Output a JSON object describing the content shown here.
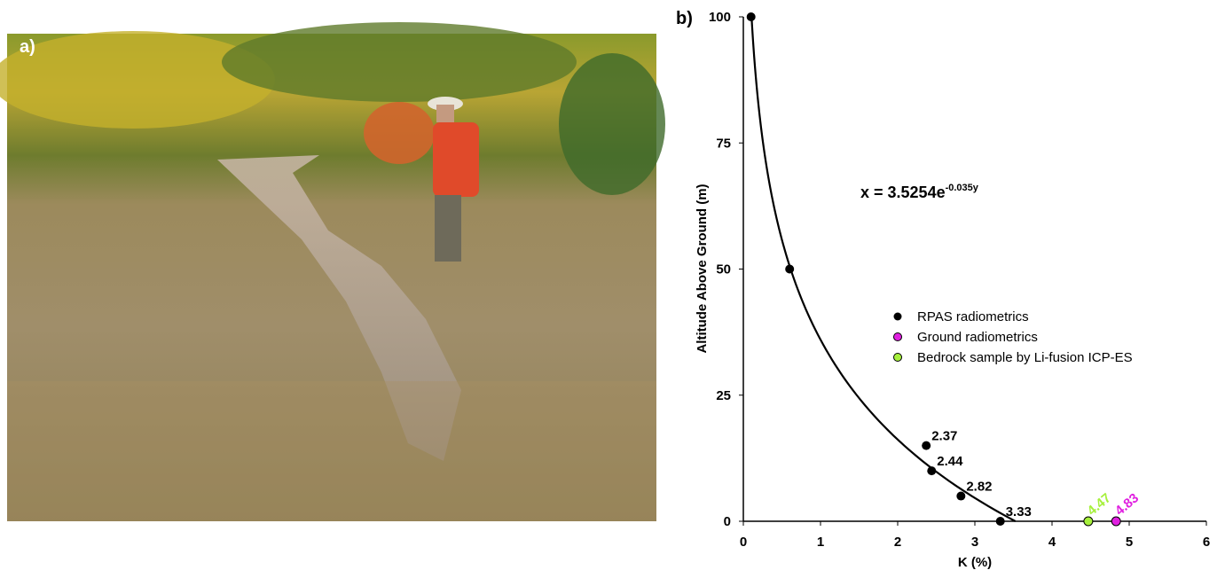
{
  "photo": {
    "label": "a)"
  },
  "chart_data": {
    "type": "scatter",
    "panel_label": "b)",
    "x_label": "K (%)",
    "y_label": "Altitude Above Ground (m)",
    "equation": {
      "text": "x = 3.5254e",
      "exponent": "-0.035y"
    },
    "fit": {
      "a": 3.5254,
      "k": -0.035
    },
    "xlim": [
      0,
      6
    ],
    "xticks": [
      0,
      1,
      2,
      3,
      4,
      5,
      6
    ],
    "ylim": [
      0,
      100
    ],
    "yticks": [
      0,
      25,
      50,
      75,
      100
    ],
    "series": [
      {
        "name": "RPAS radiometrics",
        "color": "#000000",
        "x": [
          0.1,
          0.6,
          2.37,
          2.44,
          2.82,
          3.33
        ],
        "values": [
          100,
          50,
          15,
          10,
          5,
          0
        ],
        "value_labels": [
          null,
          null,
          "2.37",
          "2.44",
          "2.82",
          "3.33"
        ],
        "label_color": "#000000"
      },
      {
        "name": "Ground radiometrics",
        "color": "#e020e0",
        "x": [
          4.83
        ],
        "values": [
          0
        ],
        "value_labels": [
          "4.83"
        ],
        "label_color": "#e020e0"
      },
      {
        "name": "Bedrock sample by Li-fusion ICP-ES",
        "color": "#a6f03c",
        "x": [
          4.47
        ],
        "values": [
          0
        ],
        "value_labels": [
          "4.47"
        ],
        "label_color": "#a6f03c"
      }
    ]
  }
}
